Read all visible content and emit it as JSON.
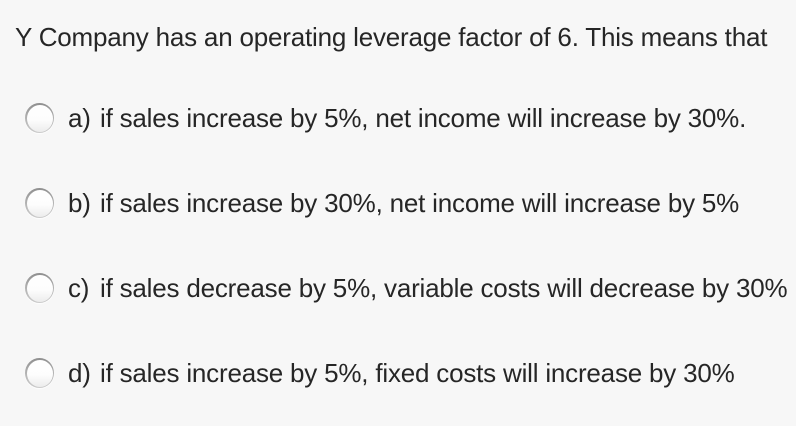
{
  "page": {
    "background_color": "#f7f7f7",
    "text_color": "#262626"
  },
  "question": {
    "text": "Y Company has an operating leverage factor of 6. This means that"
  },
  "options": [
    {
      "label": "a)",
      "text": "if sales increase by 5%, net income will increase by 30%.",
      "selected": false
    },
    {
      "label": "b)",
      "text": "if sales increase by 30%, net income will increase by 5%",
      "selected": false
    },
    {
      "label": "c)",
      "text": "if sales decrease by 5%, variable costs will decrease by 30%",
      "selected": false
    },
    {
      "label": "d)",
      "text": "if sales increase by 5%, fixed costs will increase by 30%",
      "selected": false
    }
  ]
}
